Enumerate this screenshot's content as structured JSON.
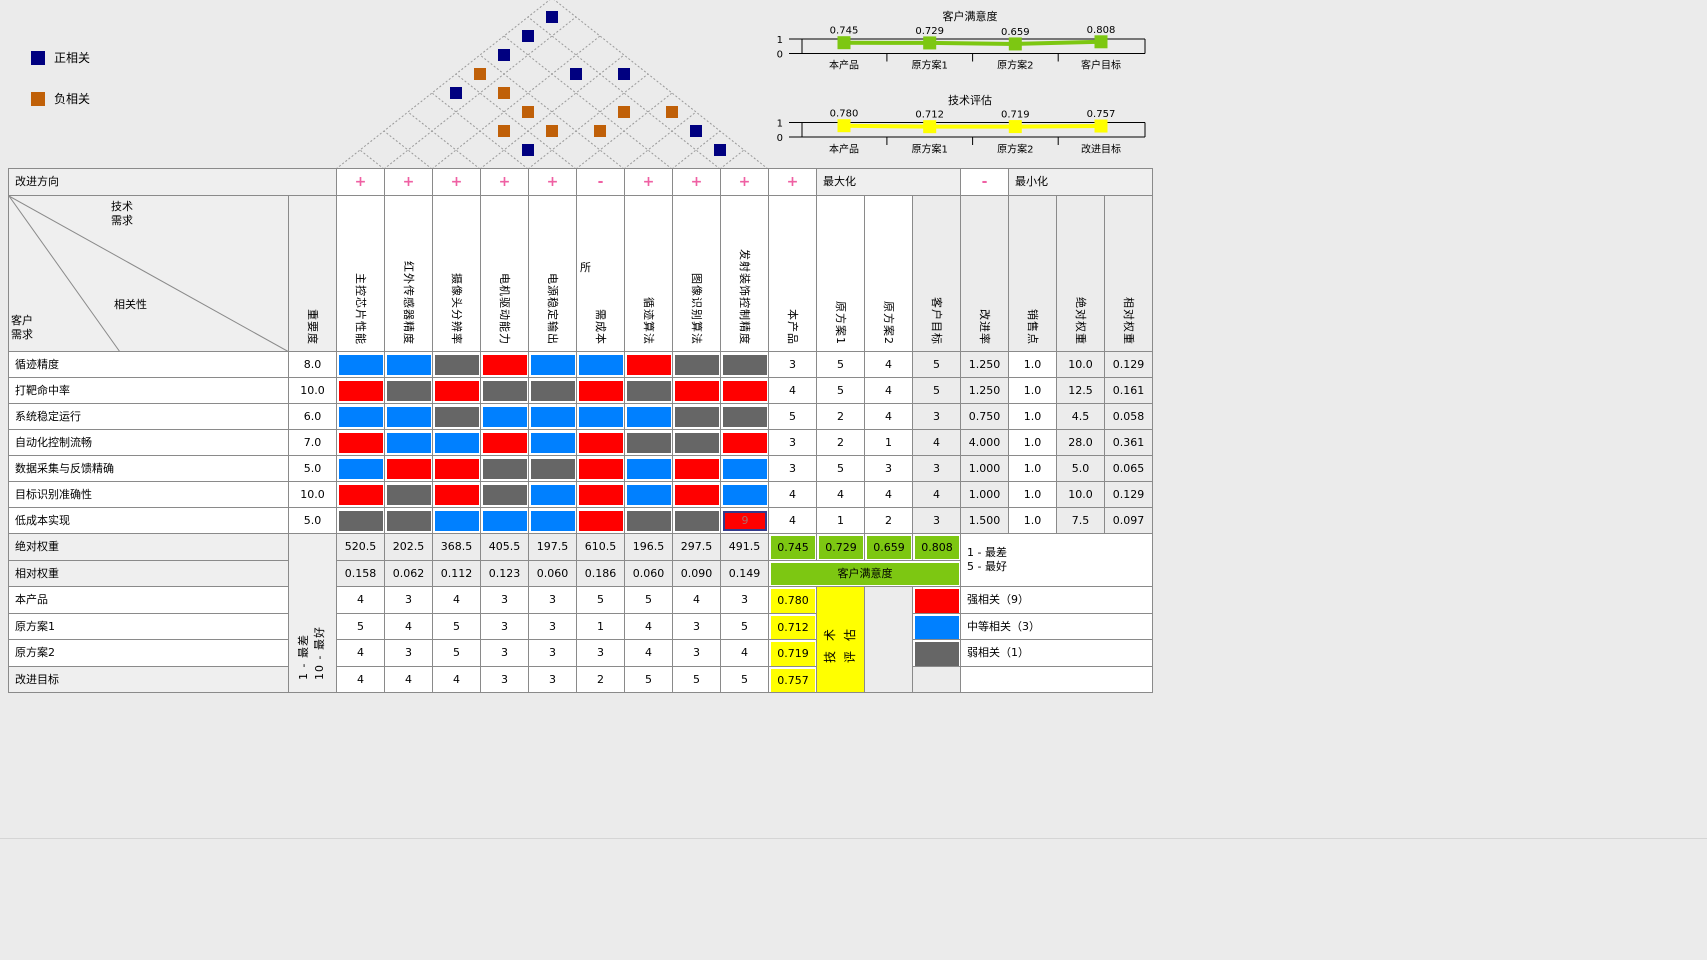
{
  "colors": {
    "strong": "#ff0000",
    "medium": "#0080ff",
    "weak": "#666666",
    "green": "#7dc712",
    "yellow": "#ffff00",
    "roof_positive": "#000080",
    "roof_negative": "#c06008",
    "sign_pink": "#ef60a3",
    "label_gray": "#efefef",
    "col_gray": "#ececec",
    "border": "#8a8a8a"
  },
  "correlation_legend": [
    {
      "label": "正相关",
      "color": "#000080"
    },
    {
      "label": "负相关",
      "color": "#c06008"
    }
  ],
  "roof": {
    "markers": [
      {
        "a": 1,
        "b": 9,
        "type": "pos"
      },
      {
        "a": 1,
        "b": 8,
        "type": "pos"
      },
      {
        "a": 1,
        "b": 7,
        "type": "pos"
      },
      {
        "a": 1,
        "b": 6,
        "type": "neg"
      },
      {
        "a": 3,
        "b": 8,
        "type": "pos"
      },
      {
        "a": 4,
        "b": 9,
        "type": "pos"
      },
      {
        "a": 1,
        "b": 5,
        "type": "pos"
      },
      {
        "a": 2,
        "b": 6,
        "type": "neg"
      },
      {
        "a": 3,
        "b": 6,
        "type": "neg"
      },
      {
        "a": 5,
        "b": 8,
        "type": "neg"
      },
      {
        "a": 6,
        "b": 9,
        "type": "neg"
      },
      {
        "a": 3,
        "b": 5,
        "type": "neg"
      },
      {
        "a": 4,
        "b": 6,
        "type": "neg"
      },
      {
        "a": 5,
        "b": 7,
        "type": "neg"
      },
      {
        "a": 7,
        "b": 9,
        "type": "pos"
      },
      {
        "a": 4,
        "b": 5,
        "type": "pos"
      },
      {
        "a": 8,
        "b": 9,
        "type": "pos"
      }
    ]
  },
  "charts": [
    {
      "type": "line",
      "title": "客户满意度",
      "y_ticks": [
        "1",
        "0"
      ],
      "ylim": [
        0,
        1
      ],
      "categories": [
        "本产品",
        "原方案1",
        "原方案2",
        "客户目标"
      ],
      "values": [
        0.745,
        0.729,
        0.659,
        0.808
      ],
      "value_labels": [
        "0.745",
        "0.729",
        "0.659",
        "0.808"
      ],
      "color": "#7dc712"
    },
    {
      "type": "line",
      "title": "技术评估",
      "y_ticks": [
        "1",
        "0"
      ],
      "ylim": [
        0,
        1
      ],
      "categories": [
        "本产品",
        "原方案1",
        "原方案2",
        "改进目标"
      ],
      "values": [
        0.78,
        0.712,
        0.719,
        0.757
      ],
      "value_labels": [
        "0.780",
        "0.712",
        "0.719",
        "0.757"
      ],
      "color": "#ffff00"
    }
  ],
  "header": {
    "improvement_direction_label": "改进方向",
    "signs": [
      "+",
      "+",
      "+",
      "+",
      "+",
      "-",
      "+",
      "+",
      "+"
    ],
    "product_sign": "+",
    "maximize_label": "最大化",
    "minimize_sign": "-",
    "minimize_label": "最小化"
  },
  "corner": {
    "tech_label": "技术\n需求",
    "correlation_label": "相关性",
    "customer_label": "客户\n需求",
    "importance_label": "重要度"
  },
  "tech_requirements": [
    "主控芯片性能",
    "红外传感器精度",
    "摄像头分辨率",
    "电机驱动能力",
    "电源稳定输出",
    "所需成本",
    "循迹算法",
    "图像识别算法",
    "发射装饰控制精度"
  ],
  "tech_header_artifact": {
    "column": 6,
    "char": "所"
  },
  "right_columns": [
    "本产品",
    "原方案1",
    "原方案2",
    "客户目标",
    "改进率",
    "销售点",
    "绝对权重",
    "相对权重"
  ],
  "requirements": [
    {
      "name": "循迹精度",
      "importance": "8.0",
      "relations": [
        "M",
        "M",
        "W",
        "S",
        "M",
        "M",
        "S",
        "W",
        "W"
      ],
      "ratings": [
        "3",
        "5",
        "4",
        "5"
      ],
      "improve": "1.250",
      "sales": "1.0",
      "abs": "10.0",
      "rel": "0.129"
    },
    {
      "name": "打靶命中率",
      "importance": "10.0",
      "relations": [
        "S",
        "W",
        "S",
        "W",
        "W",
        "S",
        "W",
        "S",
        "S"
      ],
      "ratings": [
        "4",
        "5",
        "4",
        "5"
      ],
      "improve": "1.250",
      "sales": "1.0",
      "abs": "12.5",
      "rel": "0.161"
    },
    {
      "name": "系统稳定运行",
      "importance": "6.0",
      "relations": [
        "M",
        "M",
        "W",
        "M",
        "M",
        "M",
        "M",
        "W",
        "W"
      ],
      "ratings": [
        "5",
        "2",
        "4",
        "3"
      ],
      "improve": "0.750",
      "sales": "1.0",
      "abs": "4.5",
      "rel": "0.058"
    },
    {
      "name": "自动化控制流畅",
      "importance": "7.0",
      "relations": [
        "S",
        "M",
        "M",
        "S",
        "M",
        "S",
        "W",
        "W",
        "S"
      ],
      "ratings": [
        "3",
        "2",
        "1",
        "4"
      ],
      "improve": "4.000",
      "sales": "1.0",
      "abs": "28.0",
      "rel": "0.361"
    },
    {
      "name": "数据采集与反馈精确",
      "importance": "5.0",
      "relations": [
        "M",
        "S",
        "S",
        "W",
        "W",
        "S",
        "M",
        "S",
        "M"
      ],
      "ratings": [
        "3",
        "5",
        "3",
        "3"
      ],
      "improve": "1.000",
      "sales": "1.0",
      "abs": "5.0",
      "rel": "0.065"
    },
    {
      "name": "目标识别准确性",
      "importance": "10.0",
      "relations": [
        "S",
        "W",
        "S",
        "W",
        "M",
        "S",
        "M",
        "S",
        "M"
      ],
      "ratings": [
        "4",
        "4",
        "4",
        "4"
      ],
      "improve": "1.000",
      "sales": "1.0",
      "abs": "10.0",
      "rel": "0.129"
    },
    {
      "name": "低成本实现",
      "importance": "5.0",
      "relations": [
        "W",
        "W",
        "M",
        "M",
        "M",
        "S",
        "W",
        "W",
        "S"
      ],
      "ratings": [
        "4",
        "1",
        "2",
        "3"
      ],
      "improve": "1.500",
      "sales": "1.0",
      "abs": "7.5",
      "rel": "0.097"
    }
  ],
  "relation_colors": {
    "S": "#ff0000",
    "M": "#0080ff",
    "W": "#666666"
  },
  "selected_cell": {
    "row": 7,
    "col": 9,
    "value": "9"
  },
  "abs_weight_row": {
    "label": "绝对权重",
    "values": [
      "520.5",
      "202.5",
      "368.5",
      "405.5",
      "197.5",
      "610.5",
      "196.5",
      "297.5",
      "491.5"
    ],
    "satisfaction": [
      "0.745",
      "0.729",
      "0.659",
      "0.808"
    ]
  },
  "rel_weight_row": {
    "label": "相对权重",
    "values": [
      "0.158",
      "0.062",
      "0.112",
      "0.123",
      "0.060",
      "0.186",
      "0.060",
      "0.090",
      "0.149"
    ],
    "banner": "客户满意度"
  },
  "scale_note_left": "1 - 最差\n10 - 最好",
  "scale_note_right": "1 - 最差\n5 - 最好",
  "tech_eval_box_label": "技术\n评估",
  "tech_eval_rows": [
    {
      "label": "本产品",
      "values": [
        "4",
        "3",
        "4",
        "3",
        "3",
        "5",
        "5",
        "4",
        "3"
      ],
      "tech_eval": "0.780",
      "legend": {
        "color": "#ff0000",
        "label": "强相关（9）"
      }
    },
    {
      "label": "原方案1",
      "values": [
        "5",
        "4",
        "5",
        "3",
        "3",
        "1",
        "4",
        "3",
        "5"
      ],
      "tech_eval": "0.712",
      "legend": {
        "color": "#0080ff",
        "label": "中等相关（3）"
      }
    },
    {
      "label": "原方案2",
      "values": [
        "4",
        "3",
        "5",
        "3",
        "3",
        "3",
        "4",
        "3",
        "4"
      ],
      "tech_eval": "0.719",
      "legend": {
        "color": "#666666",
        "label": "弱相关（1）"
      }
    },
    {
      "label": "改进目标",
      "values": [
        "4",
        "4",
        "4",
        "3",
        "3",
        "2",
        "5",
        "5",
        "5"
      ],
      "tech_eval": "0.757",
      "legend": null
    }
  ]
}
